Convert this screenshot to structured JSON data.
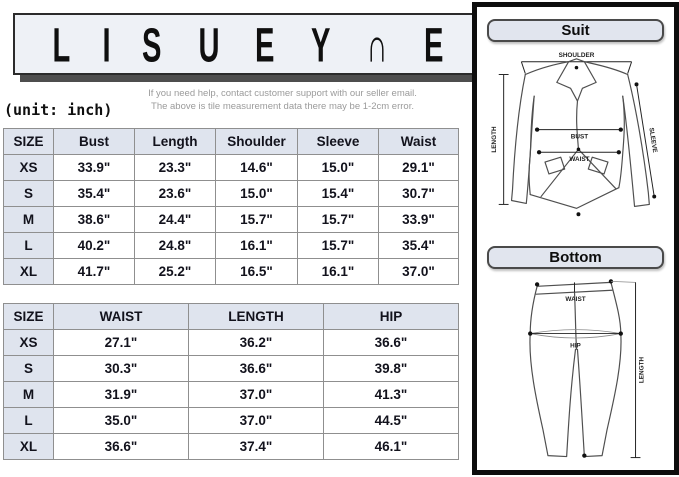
{
  "logo": {
    "letters": [
      "L",
      "I",
      "S",
      "U",
      "E",
      "Y",
      "∩",
      "E"
    ]
  },
  "help": {
    "line1": "If you need help, contact customer support with our seller email.",
    "line2": "The above is tile measurement data there may be 1-2cm error."
  },
  "unit_label": "(unit: inch)",
  "suit_table": {
    "headers": [
      "SIZE",
      "Bust",
      "Length",
      "Shoulder",
      "Sleeve",
      "Waist"
    ],
    "rows": [
      [
        "XS",
        "33.9\"",
        "23.3\"",
        "14.6\"",
        "15.0\"",
        "29.1\""
      ],
      [
        "S",
        "35.4\"",
        "23.6\"",
        "15.0\"",
        "15.4\"",
        "30.7\""
      ],
      [
        "M",
        "38.6\"",
        "24.4\"",
        "15.7\"",
        "15.7\"",
        "33.9\""
      ],
      [
        "L",
        "40.2\"",
        "24.8\"",
        "16.1\"",
        "15.7\"",
        "35.4\""
      ],
      [
        "XL",
        "41.7\"",
        "25.2\"",
        "16.5\"",
        "16.1\"",
        "37.0\""
      ]
    ]
  },
  "bottom_table": {
    "headers": [
      "SIZE",
      "WAIST",
      "LENGTH",
      "HIP"
    ],
    "rows": [
      [
        "XS",
        "27.1\"",
        "36.2\"",
        "36.6\""
      ],
      [
        "S",
        "30.3\"",
        "36.6\"",
        "39.8\""
      ],
      [
        "M",
        "31.9\"",
        "37.0\"",
        "41.3\""
      ],
      [
        "L",
        "35.0\"",
        "37.0\"",
        "44.5\""
      ],
      [
        "XL",
        "36.6\"",
        "37.4\"",
        "46.1\""
      ]
    ]
  },
  "diagrams": {
    "suit": {
      "title": "Suit",
      "labels": {
        "shoulder": "SHOULDER",
        "length": "LENGTH",
        "sleeve": "SLEEVE",
        "bust": "BUST",
        "waist": "WAIST"
      }
    },
    "bottom": {
      "title": "Bottom",
      "labels": {
        "waist": "WAIST",
        "hip": "HIP",
        "length": "LENGTH"
      }
    }
  },
  "colors": {
    "table_header_fill": "#dfe4ee",
    "table_border": "#8f8f8f",
    "panel_border": "#0d0d0d",
    "logo_shadow": "#4e4e4e",
    "help_text": "#9b9b9b",
    "text": "#12121c"
  }
}
